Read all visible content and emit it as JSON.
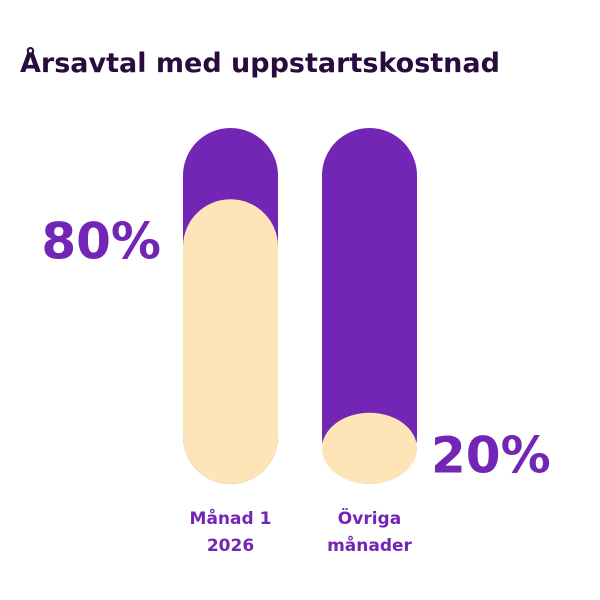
{
  "chart_data": {
    "type": "bar",
    "title": "Årsavtal med uppstartskostnad",
    "categories": [
      "Månad 1 2026",
      "Övriga månader"
    ],
    "values": [
      80,
      20
    ],
    "value_labels": [
      "80%",
      "20%"
    ],
    "color": "#fde5b8",
    "track_color": "#7326b5",
    "ylim": [
      0,
      100
    ]
  }
}
